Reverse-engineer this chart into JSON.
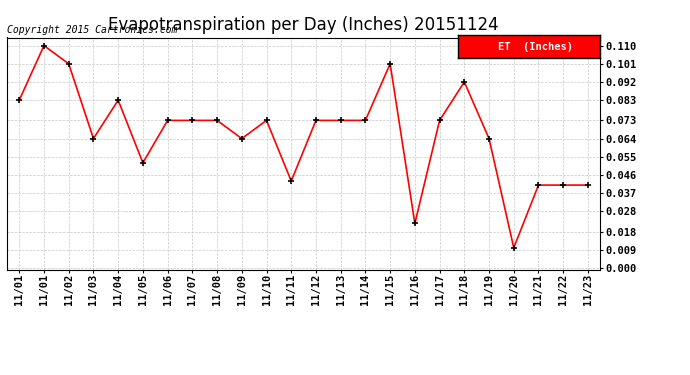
{
  "title": "Evapotranspiration per Day (Inches) 20151124",
  "copyright": "Copyright 2015 Cartronics.com",
  "legend_label": "ET  (Inches)",
  "x_labels": [
    "11/01",
    "11/01",
    "11/02",
    "11/03",
    "11/04",
    "11/05",
    "11/06",
    "11/07",
    "11/08",
    "11/09",
    "11/10",
    "11/11",
    "11/12",
    "11/13",
    "11/14",
    "11/15",
    "11/16",
    "11/17",
    "11/18",
    "11/19",
    "11/20",
    "11/21",
    "11/22",
    "11/23"
  ],
  "y_values": [
    0.083,
    0.11,
    0.101,
    0.064,
    0.083,
    0.052,
    0.073,
    0.073,
    0.073,
    0.064,
    0.073,
    0.043,
    0.073,
    0.073,
    0.073,
    0.101,
    0.022,
    0.073,
    0.092,
    0.064,
    0.01,
    0.041,
    0.041,
    0.041
  ],
  "ylim_min": -0.001,
  "ylim_max": 0.114,
  "yticks": [
    0.0,
    0.009,
    0.018,
    0.028,
    0.037,
    0.046,
    0.055,
    0.064,
    0.073,
    0.083,
    0.092,
    0.101,
    0.11
  ],
  "line_color": "red",
  "marker_color": "black",
  "bg_color": "#ffffff",
  "grid_color": "#c8c8c8",
  "legend_bg": "red",
  "legend_text_color": "white",
  "title_fontsize": 12,
  "tick_fontsize": 7.5,
  "copyright_fontsize": 7,
  "legend_fontsize": 7.5
}
